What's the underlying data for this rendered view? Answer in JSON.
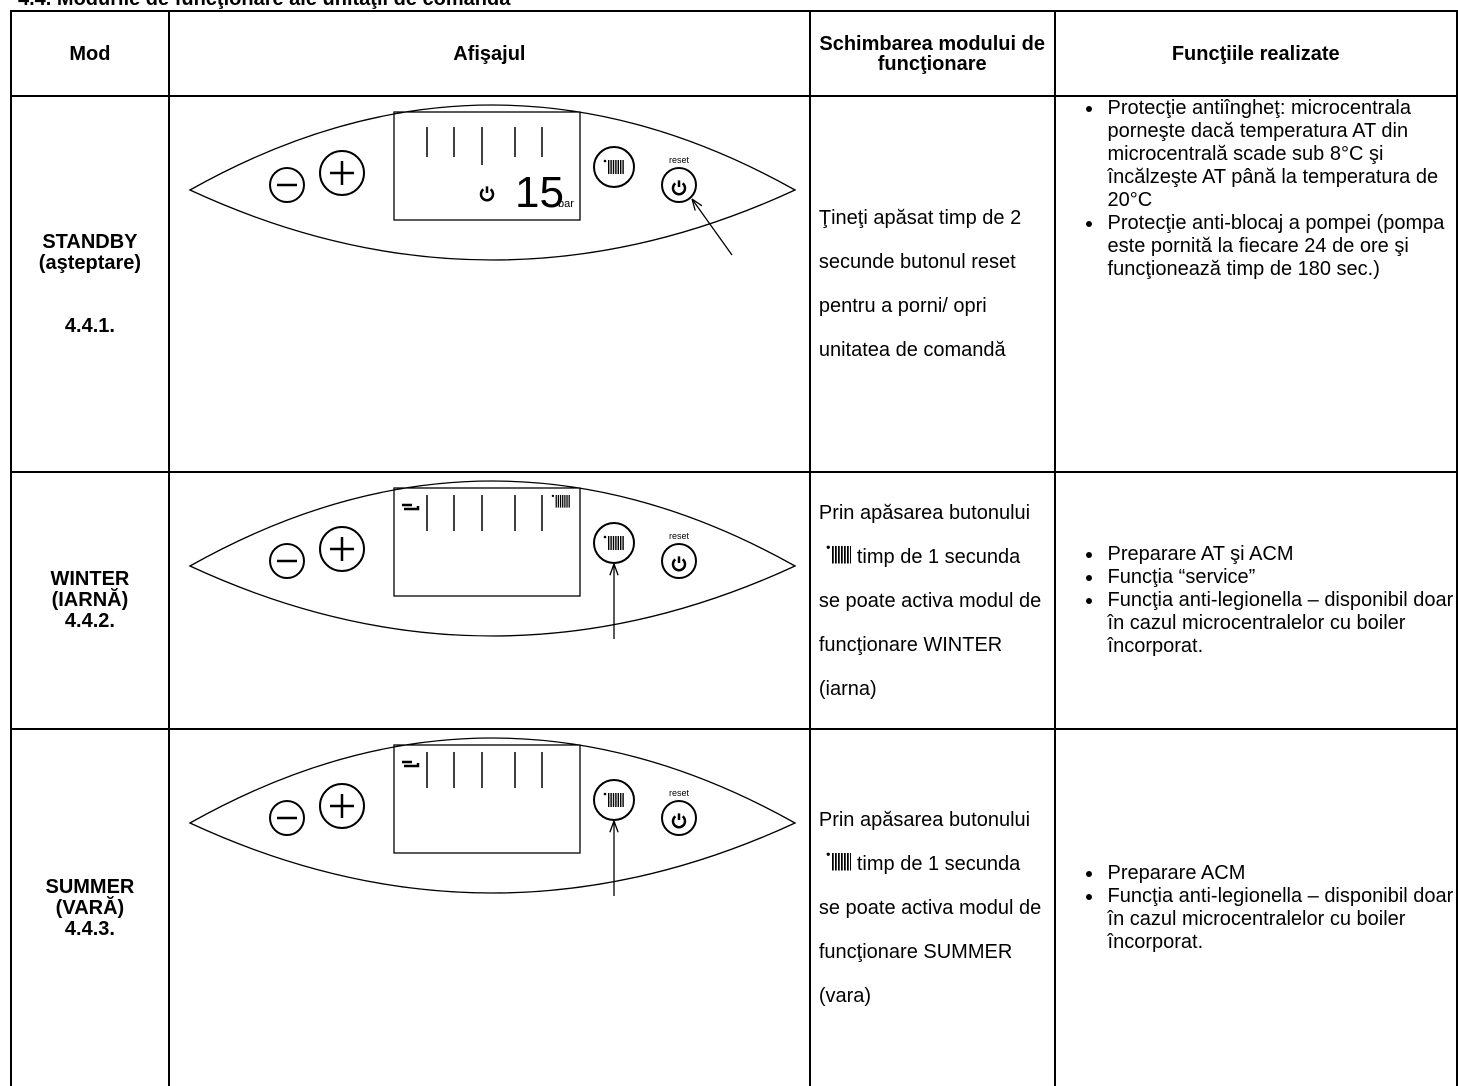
{
  "heading": "4.4. Modurile de funcţionare ale unităţii de comandă",
  "table": {
    "header": [
      "Mod",
      "Afişajul",
      "Schimbarea modului de funcţionare",
      "Funcţiile realizate"
    ],
    "rows": [
      {
        "mode": [
          "STANDBY",
          "(aşteptare)"
        ],
        "code": "4.4.1.",
        "display": {
          "reset": "reset",
          "digits": "15",
          "unit": "bar"
        },
        "change": [
          "Ţineţi apăsat timp de 2 secunde butonul reset pentru a porni/ opri unitatea de comandă"
        ],
        "functions": [
          "Protecţie antiîngheţ: microcentrala porneşte dacă temperatura AT din microcentrală scade sub 8°C şi încălzeşte AT până la temperatura de 20°C",
          "Protecţie anti-blocaj a pompei (pompa este pornită la fiecare 24 de ore şi funcţionează timp de 180 sec.)"
        ]
      },
      {
        "mode": [
          "WINTER",
          "(IARNĂ)"
        ],
        "code": "4.4.2.",
        "display": {
          "reset": "reset"
        },
        "change": [
          "Prin apăsarea butonului",
          "timp de 1 secunda se poate activa modul de funcţionare WINTER (iarna)"
        ],
        "functions": [
          "Preparare AT şi ACM",
          "Funcţia “service”",
          "Funcţia anti-legionella – disponibil doar în cazul microcentralelor cu boiler încorporat."
        ]
      },
      {
        "mode": [
          "SUMMER",
          "(VARĂ)"
        ],
        "code": "4.4.3.",
        "display": {
          "reset": "reset"
        },
        "change": [
          "Prin apăsarea butonului",
          "timp de 1 secunda se poate activa modul de funcţionare SUMMER (vara)"
        ],
        "functions": [
          "Preparare ACM",
          "Funcţia anti-legionella – disponibil doar în cazul microcentralelor cu boiler încorporat."
        ]
      }
    ]
  }
}
